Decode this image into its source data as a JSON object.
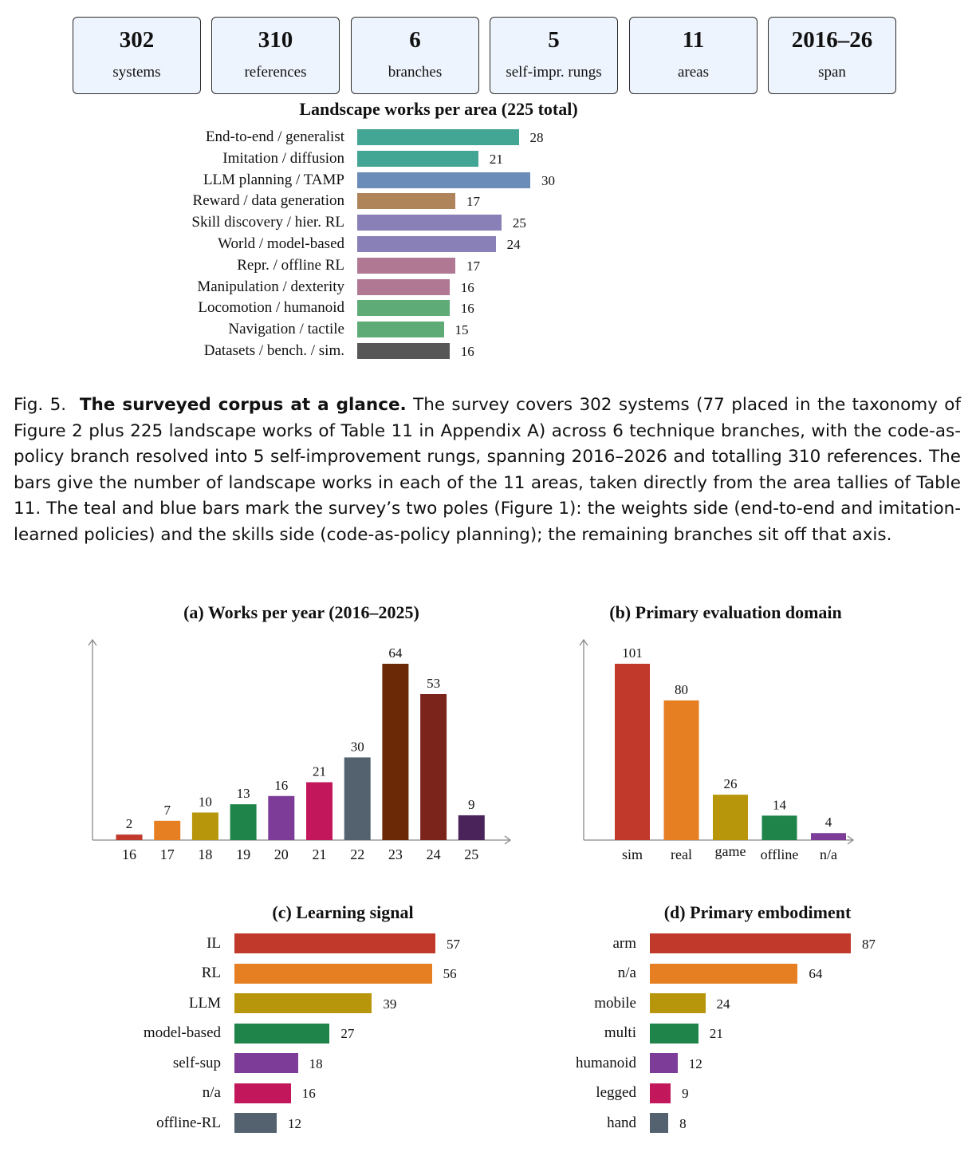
{
  "stats": [
    {
      "value": "302",
      "label": "systems"
    },
    {
      "value": "310",
      "label": "references"
    },
    {
      "value": "6",
      "label": "branches"
    },
    {
      "value": "5",
      "label": "self-impr. rungs"
    },
    {
      "value": "11",
      "label": "areas"
    },
    {
      "value": "2016–26",
      "label": "span"
    }
  ],
  "caption": {
    "prefix": "Fig. 5.",
    "bold": "The surveyed corpus at a glance.",
    "text": "The survey covers 302 systems (77 placed in the taxonomy of Figure 2 plus 225 landscape works of Table 11 in Appendix A) across 6 technique branches, with the code-as-policy branch resolved into 5 self-improvement rungs, spanning 2016–2026 and totalling 310 references. The bars give the number of landscape works in each of the 11 areas, taken directly from the area tallies of Table 11. The teal and blue bars mark the survey’s two poles (Figure 1): the weights side (end-to-end and imitation-learned policies) and the skills side (code-as-policy planning); the remaining branches sit off that axis."
  },
  "chart_data": [
    {
      "id": "areas",
      "type": "bar",
      "orientation": "horizontal",
      "title": "Landscape works per area (225 total)",
      "categories": [
        "End-to-end / generalist",
        "Imitation / diffusion",
        "LLM planning / TAMP",
        "Reward / data generation",
        "Skill discovery / hier. RL",
        "World / model-based",
        "Repr. / offline RL",
        "Manipulation / dexterity",
        "Locomotion / humanoid",
        "Navigation / tactile",
        "Datasets / bench. / sim."
      ],
      "values": [
        28,
        21,
        30,
        17,
        25,
        24,
        17,
        16,
        16,
        15,
        16
      ],
      "colors": [
        "#43a594",
        "#43a594",
        "#6b8cb8",
        "#b0845a",
        "#8880b6",
        "#8880b6",
        "#b07893",
        "#b07893",
        "#5eab78",
        "#5eab78",
        "#575757"
      ],
      "xlim": [
        0,
        30
      ]
    },
    {
      "id": "years",
      "type": "bar",
      "title": "(a) Works per year (2016–2025)",
      "categories": [
        "16",
        "17",
        "18",
        "19",
        "20",
        "21",
        "22",
        "23",
        "24",
        "25"
      ],
      "values": [
        2,
        7,
        10,
        13,
        16,
        21,
        30,
        64,
        53,
        9
      ],
      "colors": [
        "#c0392b",
        "#e67e22",
        "#b8960c",
        "#1e8449",
        "#7d3c98",
        "#c2185b",
        "#546270",
        "#6b2a05",
        "#7b241c",
        "#4a235a"
      ],
      "ylim": [
        0,
        64
      ]
    },
    {
      "id": "domain",
      "type": "bar",
      "title": "(b) Primary evaluation domain",
      "categories": [
        "sim",
        "real",
        "game",
        "offline",
        "n/a"
      ],
      "values": [
        101,
        80,
        26,
        14,
        4
      ],
      "colors": [
        "#c0392b",
        "#e67e22",
        "#b8960c",
        "#1e8449",
        "#7d3c98"
      ],
      "ylim": [
        0,
        101
      ]
    },
    {
      "id": "signal",
      "type": "bar",
      "orientation": "horizontal",
      "title": "(c) Learning signal",
      "categories": [
        "IL",
        "RL",
        "LLM",
        "model-based",
        "self-sup",
        "n/a",
        "offline-RL"
      ],
      "values": [
        57,
        56,
        39,
        27,
        18,
        16,
        12
      ],
      "colors": [
        "#c0392b",
        "#e67e22",
        "#b8960c",
        "#1e8449",
        "#7d3c98",
        "#c2185b",
        "#546270"
      ],
      "xlim": [
        0,
        57
      ]
    },
    {
      "id": "embodiment",
      "type": "bar",
      "orientation": "horizontal",
      "title": "(d) Primary embodiment",
      "categories": [
        "arm",
        "n/a",
        "mobile",
        "multi",
        "humanoid",
        "legged",
        "hand"
      ],
      "values": [
        87,
        64,
        24,
        21,
        12,
        9,
        8
      ],
      "colors": [
        "#c0392b",
        "#e67e22",
        "#b8960c",
        "#1e8449",
        "#7d3c98",
        "#c2185b",
        "#546270"
      ],
      "xlim": [
        0,
        87
      ]
    }
  ]
}
